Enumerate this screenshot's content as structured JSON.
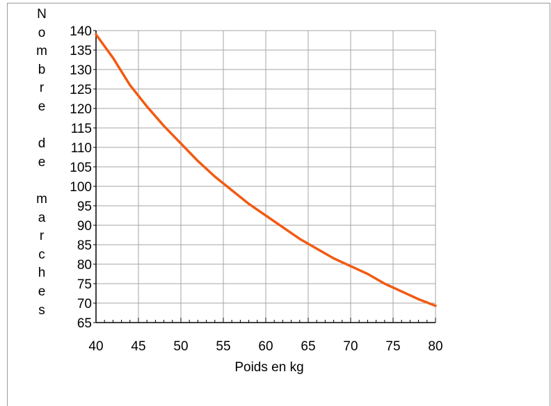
{
  "chart_data": {
    "type": "line",
    "title": "",
    "xlabel": "Poids en kg",
    "ylabel_letters": [
      "N",
      "o",
      "m",
      "b",
      "r",
      "e",
      "",
      "d",
      "e",
      "",
      "m",
      "a",
      "r",
      "c",
      "h",
      "e",
      "s"
    ],
    "xlim": [
      40,
      80
    ],
    "ylim": [
      65,
      140
    ],
    "xticks": [
      40,
      45,
      50,
      55,
      60,
      65,
      70,
      75,
      80
    ],
    "yticks": [
      65,
      70,
      75,
      80,
      85,
      90,
      95,
      100,
      105,
      110,
      115,
      120,
      125,
      130,
      135,
      140
    ],
    "grid": true,
    "line_color": "#f25a12",
    "series": [
      {
        "x": [
          40,
          42,
          44,
          46,
          48,
          50,
          52,
          54,
          56,
          58,
          60,
          62,
          64,
          66,
          68,
          70,
          72,
          74,
          76,
          78,
          80
        ],
        "values": [
          139,
          133,
          126,
          120.5,
          115.5,
          111,
          106.5,
          102.5,
          99,
          95.5,
          92.5,
          89.5,
          86.5,
          84,
          81.5,
          79.5,
          77.5,
          75,
          73,
          71,
          69.3
        ]
      }
    ]
  }
}
